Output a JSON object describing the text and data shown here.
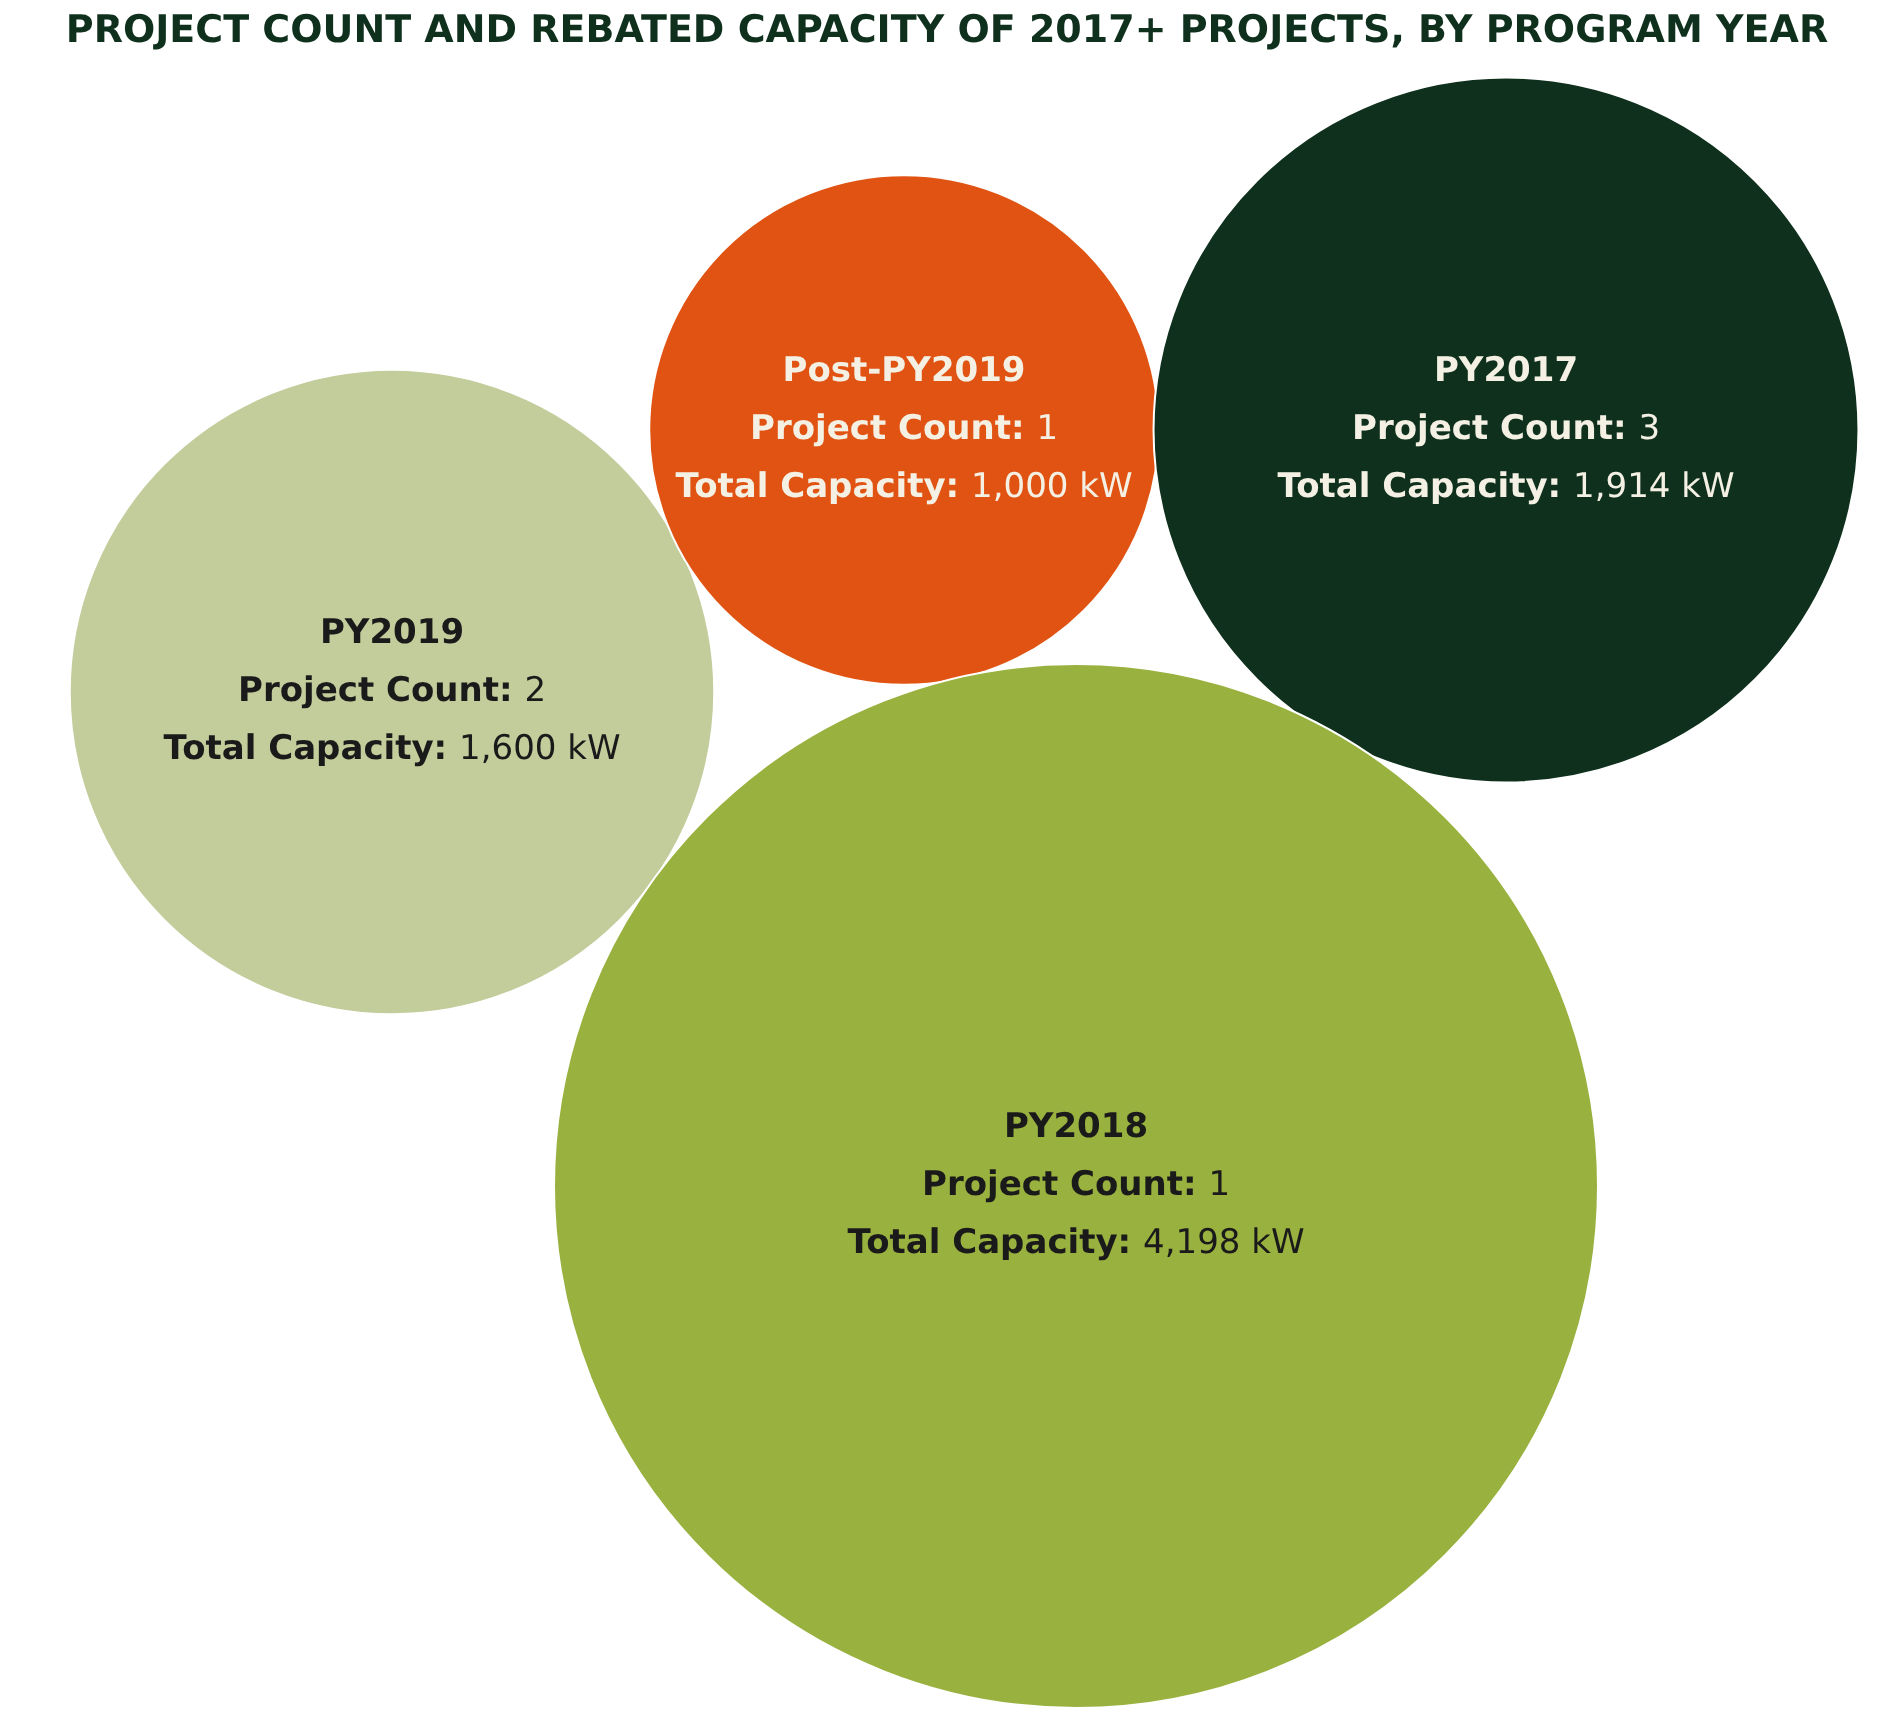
{
  "chart_data": {
    "type": "other",
    "title": "PROJECT COUNT AND REBATED CAPACITY OF 2017+ PROJECTS, BY PROGRAM YEAR",
    "categories": [
      "PY2019",
      "Post-PY2019",
      "PY2017",
      "PY2018"
    ],
    "series": [
      {
        "name": "Project Count:",
        "values": [
          2,
          1,
          3,
          1
        ],
        "value_labels": [
          "2",
          "1",
          "3",
          "1"
        ],
        "colors": [
          "#c3cc9b",
          "#e05312",
          "#0f301d",
          "#99b13f"
        ]
      },
      {
        "name": "Total Capacity:",
        "values": [
          1600,
          1000,
          1914,
          4198
        ],
        "value_labels": [
          "1,600 kW",
          "1,000 kW",
          "1,914 kW",
          "4,198 kW"
        ],
        "colors": [
          "#c3cc9b",
          "#e05312",
          "#0f301d",
          "#99b13f"
        ]
      }
    ]
  }
}
